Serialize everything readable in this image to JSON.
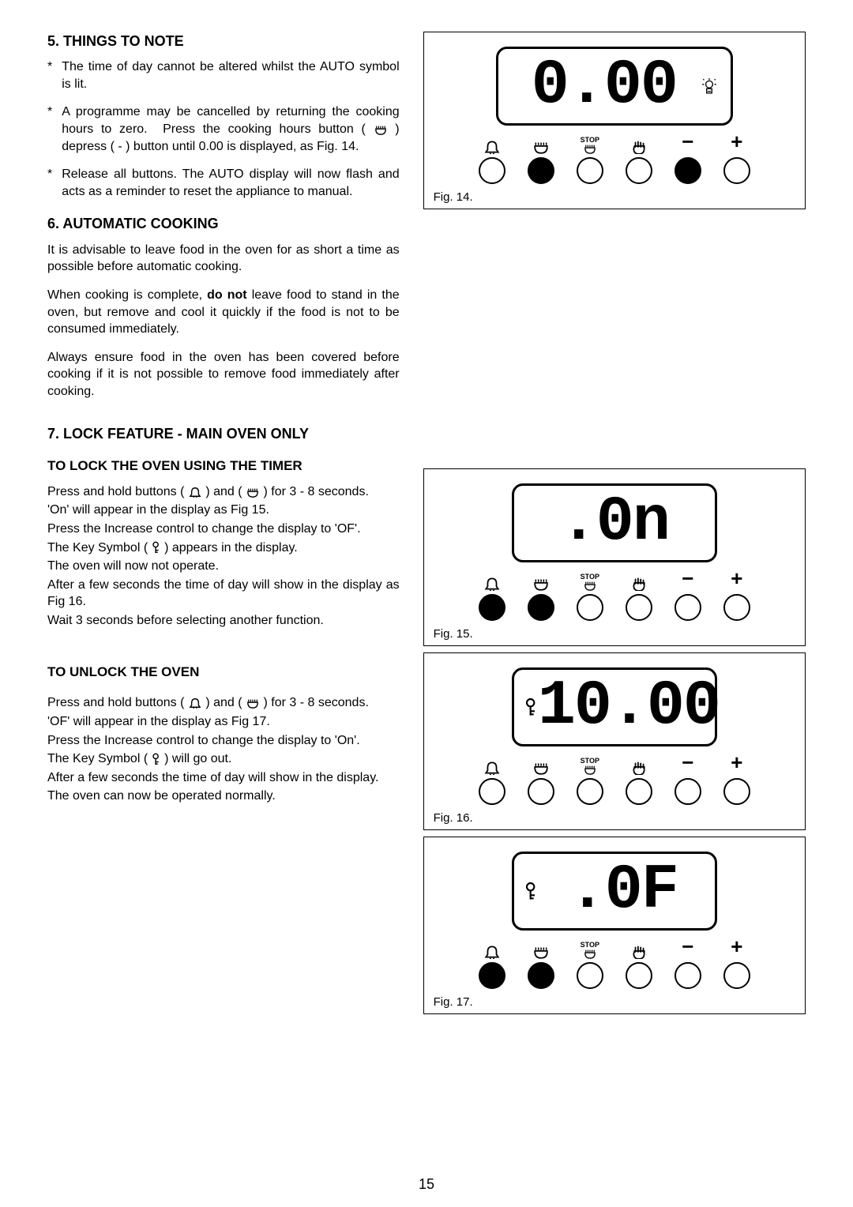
{
  "pageNumber": "15",
  "section5": {
    "heading": "5.  THINGS TO NOTE",
    "bullets": [
      "The time of day cannot be altered whilst the AUTO symbol is lit.",
      "A programme may be cancelled by returning the cooking hours to zero.  Press the cooking hours button (  ⌂  ) depress ( - ) button until 0.00 is displayed, as Fig. 14.",
      "Release all buttons.  The AUTO display will now flash and acts as a reminder to reset the appliance to manual."
    ]
  },
  "section6": {
    "heading": "6.  AUTOMATIC COOKING",
    "p1": "It is advisable to leave food in the oven for as short a time as possible before automatic cooking.",
    "p2a": "When cooking is complete, ",
    "p2bold": "do not",
    "p2b": " leave food to stand in the oven, but remove and cool it quickly if the food is not to be consumed immediately.",
    "p3": "Always ensure food in the oven has been covered before cooking if it is not possible to remove food immediately after cooking."
  },
  "section7": {
    "heading": "7.  LOCK FEATURE - MAIN OVEN ONLY",
    "lockHeading": "TO LOCK THE OVEN USING THE TIMER",
    "lock_p1a": "Press and hold buttons (",
    "lock_p1b": ") and (",
    "lock_p1c": ") for 3 - 8 seconds.",
    "lock_l2": "'On' will appear in the display as Fig 15.",
    "lock_l3": "Press the Increase control to change the display to 'OF'.",
    "lock_l4a": "The Key Symbol ( ",
    "lock_l4b": " ) appears in the display.",
    "lock_l5": "The oven will now not operate.",
    "lock_l6": "After a few seconds the time of day will show in the display as Fig 16.",
    "lock_l7": "Wait 3 seconds before selecting another function.",
    "unlockHeading": "TO UNLOCK THE OVEN",
    "unlock_p1a": "Press and hold buttons (",
    "unlock_p1b": ") and (",
    "unlock_p1c": ") for 3 - 8 seconds.",
    "unlock_l2": "'OF' will appear in the display as Fig 17.",
    "unlock_l3": "Press the Increase control to change the display to 'On'.",
    "unlock_l4a": "The Key Symbol ( ",
    "unlock_l4b": " ) will go out.",
    "unlock_l5": "After a few seconds the time of day will show in the display.",
    "unlock_l6": "The oven can now be operated normally."
  },
  "figures": {
    "fig14": {
      "display": "0.00",
      "label": "Fig. 14.",
      "filled": [
        false,
        true,
        false,
        false,
        true,
        false
      ],
      "auto": true,
      "key": false
    },
    "fig15": {
      "display": ".0n",
      "label": "Fig. 15.",
      "filled": [
        true,
        true,
        false,
        false,
        false,
        false
      ],
      "auto": false,
      "key": false
    },
    "fig16": {
      "display": "10.00",
      "label": "Fig. 16.",
      "filled": [
        false,
        false,
        false,
        false,
        false,
        false
      ],
      "auto": false,
      "key": true
    },
    "fig17": {
      "display": ".0F",
      "label": "Fig. 17.",
      "filled": [
        true,
        true,
        false,
        false,
        false,
        false
      ],
      "auto": false,
      "key": true
    }
  },
  "icons": {
    "stop": "STOP",
    "minus": "−",
    "plus": "+"
  },
  "style": {
    "body_bg": "#ffffff",
    "text_color": "#000000",
    "border_color": "#000000",
    "font_body_pt": 12,
    "font_heading_pt": 13,
    "lcd_font": "Courier New"
  }
}
